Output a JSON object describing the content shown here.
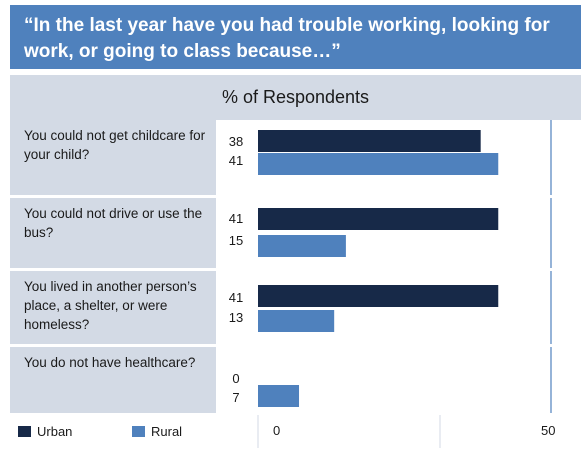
{
  "title": "“In the last year have you had trouble working, looking for work, or going to class because…”",
  "header": "% of Respondents",
  "colors": {
    "urban": "#172948",
    "rural": "#4f81bd",
    "band": "#4f81bd",
    "label_bg": "#d3dae5"
  },
  "legend": {
    "urban": "Urban",
    "rural": "Rural"
  },
  "chart_data": {
    "type": "bar",
    "orientation": "horizontal",
    "title": "“In the last year have you had trouble working, looking for work, or going to class because…”",
    "xlabel": "% of Respondents",
    "categories": [
      "You could not get childcare for your child?",
      "You could not drive or use the bus?",
      "You lived in another person’s place, a shelter, or were homeless?",
      "You do not have healthcare?"
    ],
    "series": [
      {
        "name": "Urban",
        "values": [
          38,
          41,
          41,
          0
        ]
      },
      {
        "name": "Rural",
        "values": [
          41,
          15,
          13,
          7
        ]
      }
    ],
    "xlim": [
      0,
      50
    ],
    "xticks": [
      0,
      50
    ],
    "xtick_labels": [
      "0",
      "50"
    ],
    "legend_position": "bottom-left"
  },
  "rows": [
    {
      "label": "You could not get childcare for your child?",
      "urban": "38",
      "rural": "41"
    },
    {
      "label": "You could not drive or use the bus?",
      "urban": "41",
      "rural": "15"
    },
    {
      "label": "You lived in another person’s place, a shelter, or were homeless?",
      "urban": "41",
      "rural": "13"
    },
    {
      "label": "You do not have healthcare?",
      "urban": "0",
      "rural": "7"
    }
  ]
}
